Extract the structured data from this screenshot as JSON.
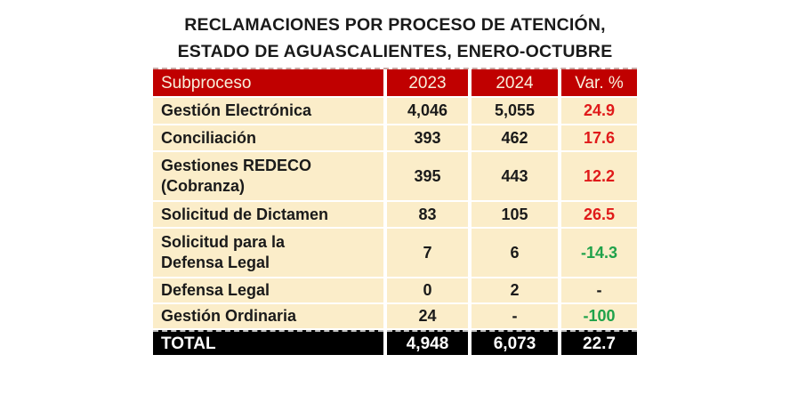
{
  "title": {
    "line1": "RECLAMACIONES POR PROCESO DE ATENCIÓN,",
    "line2": "ESTADO DE AGUASCALIENTES, ENERO-OCTUBRE"
  },
  "table": {
    "columns": [
      "Subproceso",
      "2023",
      "2024",
      "Var. %"
    ],
    "rows": [
      {
        "name": "Gestión Electrónica",
        "v2023": "4,046",
        "v2024": "5,055",
        "var": "24.9",
        "trend": "up"
      },
      {
        "name": "Conciliación",
        "v2023": "393",
        "v2024": "462",
        "var": "17.6",
        "trend": "up"
      },
      {
        "name": "Gestiones REDECO\n(Cobranza)",
        "v2023": "395",
        "v2024": "443",
        "var": "12.2",
        "trend": "up"
      },
      {
        "name": "Solicitud de Dictamen",
        "v2023": "83",
        "v2024": "105",
        "var": "26.5",
        "trend": "up"
      },
      {
        "name": "Solicitud para la\nDefensa Legal",
        "v2023": "7",
        "v2024": "6",
        "var": "-14.3",
        "trend": "down"
      },
      {
        "name": "Defensa Legal",
        "v2023": "0",
        "v2024": "2",
        "var": "-",
        "trend": "none"
      },
      {
        "name": "Gestión Ordinaria",
        "v2023": "24",
        "v2024": "-",
        "var": "-100",
        "trend": "down"
      }
    ],
    "total": {
      "label": "TOTAL",
      "v2023": "4,948",
      "v2024": "6,073",
      "var": "22.7"
    }
  },
  "chart_data": {
    "type": "table",
    "title": "RECLAMACIONES POR PROCESO DE ATENCIÓN, ESTADO DE AGUASCALIENTES, ENERO-OCTUBRE",
    "columns": [
      "Subproceso",
      "2023",
      "2024",
      "Var. %"
    ],
    "rows": [
      [
        "Gestión Electrónica",
        4046,
        5055,
        24.9
      ],
      [
        "Conciliación",
        393,
        462,
        17.6
      ],
      [
        "Gestiones REDECO (Cobranza)",
        395,
        443,
        12.2
      ],
      [
        "Solicitud de Dictamen",
        83,
        105,
        26.5
      ],
      [
        "Solicitud para la Defensa Legal",
        7,
        6,
        -14.3
      ],
      [
        "Defensa Legal",
        0,
        2,
        null
      ],
      [
        "Gestión Ordinaria",
        24,
        null,
        -100
      ]
    ],
    "total_row": [
      "TOTAL",
      4948,
      6073,
      22.7
    ]
  },
  "colors": {
    "header_bg": "#C00000",
    "header_text": "#F8EFDB",
    "row_bg": "#FBEDC9",
    "body_text": "#1A1A1A",
    "var_up": "#E01A1A",
    "var_down": "#1FA24A",
    "total_bg": "#000000",
    "total_text": "#FFFFFF",
    "dash_line": "#C9A9A4",
    "dash_line2": "#BDBDBD"
  }
}
